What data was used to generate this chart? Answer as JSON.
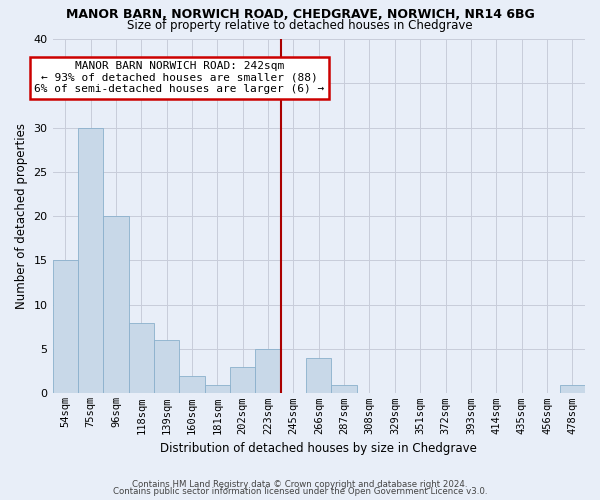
{
  "title1": "MANOR BARN, NORWICH ROAD, CHEDGRAVE, NORWICH, NR14 6BG",
  "title2": "Size of property relative to detached houses in Chedgrave",
  "xlabel": "Distribution of detached houses by size in Chedgrave",
  "ylabel": "Number of detached properties",
  "categories": [
    "54sqm",
    "75sqm",
    "96sqm",
    "118sqm",
    "139sqm",
    "160sqm",
    "181sqm",
    "202sqm",
    "223sqm",
    "245sqm",
    "266sqm",
    "287sqm",
    "308sqm",
    "329sqm",
    "351sqm",
    "372sqm",
    "393sqm",
    "414sqm",
    "435sqm",
    "456sqm",
    "478sqm"
  ],
  "values": [
    15,
    30,
    20,
    8,
    6,
    2,
    1,
    3,
    5,
    0,
    4,
    1,
    0,
    0,
    0,
    0,
    0,
    0,
    0,
    0,
    1
  ],
  "bar_color": "#c8d8e8",
  "bar_edge_color": "#8ab0cc",
  "highlight_line_color": "#aa0000",
  "highlight_line_index": 9,
  "annotation_text": "MANOR BARN NORWICH ROAD: 242sqm\n← 93% of detached houses are smaller (88)\n6% of semi-detached houses are larger (6) →",
  "annotation_box_color": "#ffffff",
  "annotation_box_edge": "#cc0000",
  "footer1": "Contains HM Land Registry data © Crown copyright and database right 2024.",
  "footer2": "Contains public sector information licensed under the Open Government Licence v3.0.",
  "bg_color": "#e8eef8",
  "ylim": [
    0,
    40
  ],
  "yticks": [
    0,
    5,
    10,
    15,
    20,
    25,
    30,
    35,
    40
  ]
}
